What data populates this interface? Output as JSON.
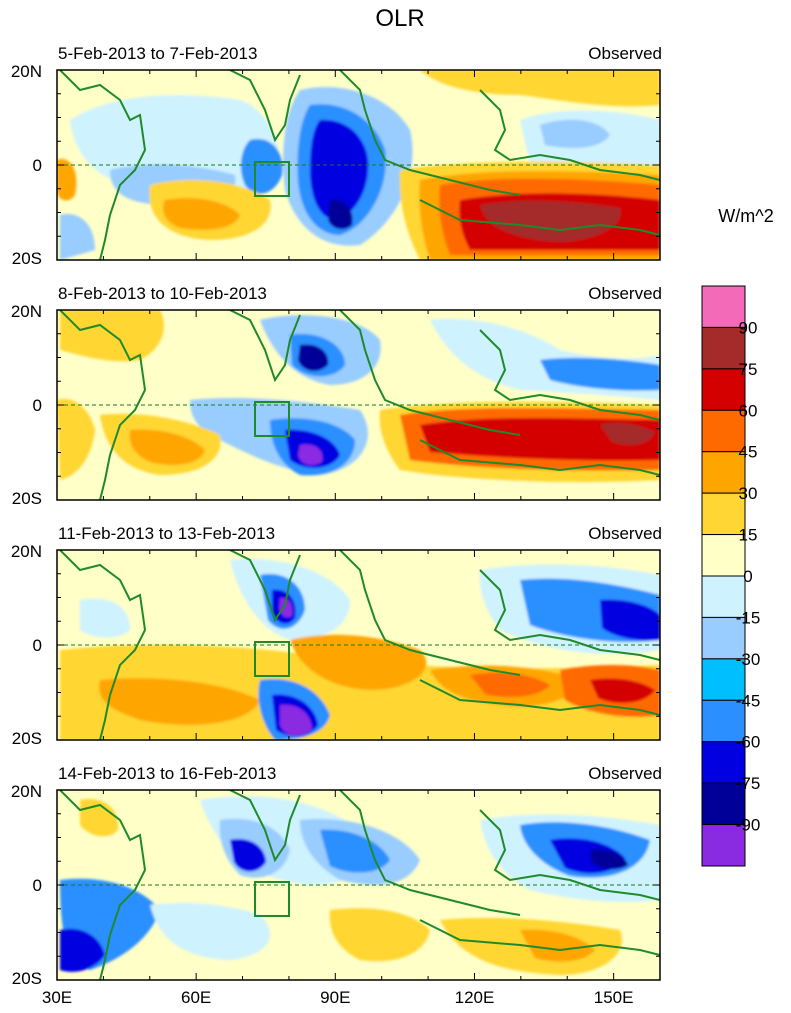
{
  "title": "OLR",
  "units": "W/m^2",
  "colors": {
    "equator_line": "#1a7a1a",
    "coast": "#1f8a2a",
    "box": "#1f8a2a"
  },
  "panels": [
    {
      "date_range": "5-Feb-2013 to 7-Feb-2013",
      "tag": "Observed"
    },
    {
      "date_range": "8-Feb-2013 to 10-Feb-2013",
      "tag": "Observed"
    },
    {
      "date_range": "11-Feb-2013 to 13-Feb-2013",
      "tag": "Observed"
    },
    {
      "date_range": "14-Feb-2013 to 16-Feb-2013",
      "tag": "Observed"
    }
  ],
  "lat_labels": [
    "20N",
    "0",
    "20S"
  ],
  "lon_labels": [
    "30E",
    "60E",
    "90E",
    "120E",
    "150E"
  ],
  "lon_values": [
    30,
    60,
    90,
    120,
    150
  ],
  "lon_range": [
    30,
    160
  ],
  "lat_range": [
    -20,
    20
  ],
  "colorbar": {
    "labels": [
      "90",
      "75",
      "60",
      "45",
      "30",
      "15",
      "0",
      "-15",
      "-30",
      "-45",
      "-60",
      "-75",
      "-90"
    ],
    "colors": [
      "#f26ab8",
      "#a52a2a",
      "#d40000",
      "#ff6a00",
      "#ffa500",
      "#ffd633",
      "#ffffc8",
      "#cff2ff",
      "#99ccff",
      "#00bfff",
      "#2b8fff",
      "#0000e0",
      "#000099",
      "#8a2be2"
    ]
  }
}
